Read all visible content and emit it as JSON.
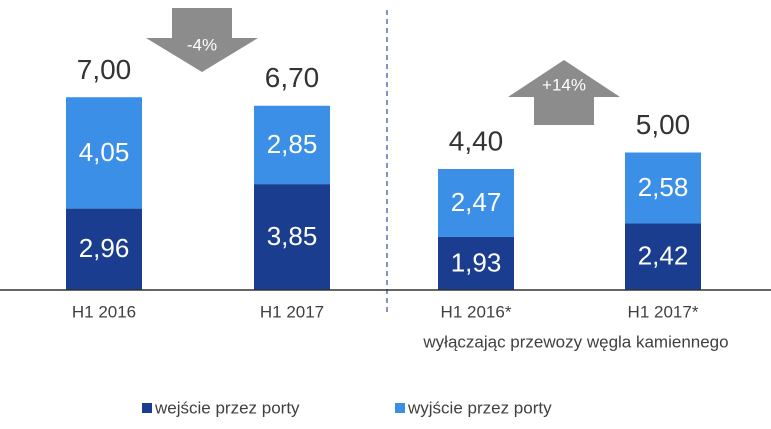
{
  "chart_data": {
    "type": "bar",
    "stacked": true,
    "categories": [
      "H1 2016",
      "H1 2017",
      "H1 2016*",
      "H1 2017*"
    ],
    "series": [
      {
        "name": "wejście przez porty",
        "color": "#1b3d8f",
        "values": [
          2.96,
          3.85,
          1.93,
          2.42
        ],
        "value_labels": [
          "2,96",
          "3,85",
          "1,93",
          "2,42"
        ]
      },
      {
        "name": "wyjście przez porty",
        "color": "#3b8fe6",
        "values": [
          4.05,
          2.85,
          2.47,
          2.58
        ],
        "value_labels": [
          "4,05",
          "2,85",
          "2,47",
          "2,58"
        ]
      }
    ],
    "totals": [
      7.0,
      6.7,
      4.4,
      5.0
    ],
    "total_labels": [
      "7,00",
      "6,70",
      "4,40",
      "5,00"
    ],
    "subtitle": "wyłączając przewozy węgla kamiennego",
    "annotations": [
      "-4%",
      "+14%"
    ],
    "ylim": [
      0,
      10
    ]
  }
}
